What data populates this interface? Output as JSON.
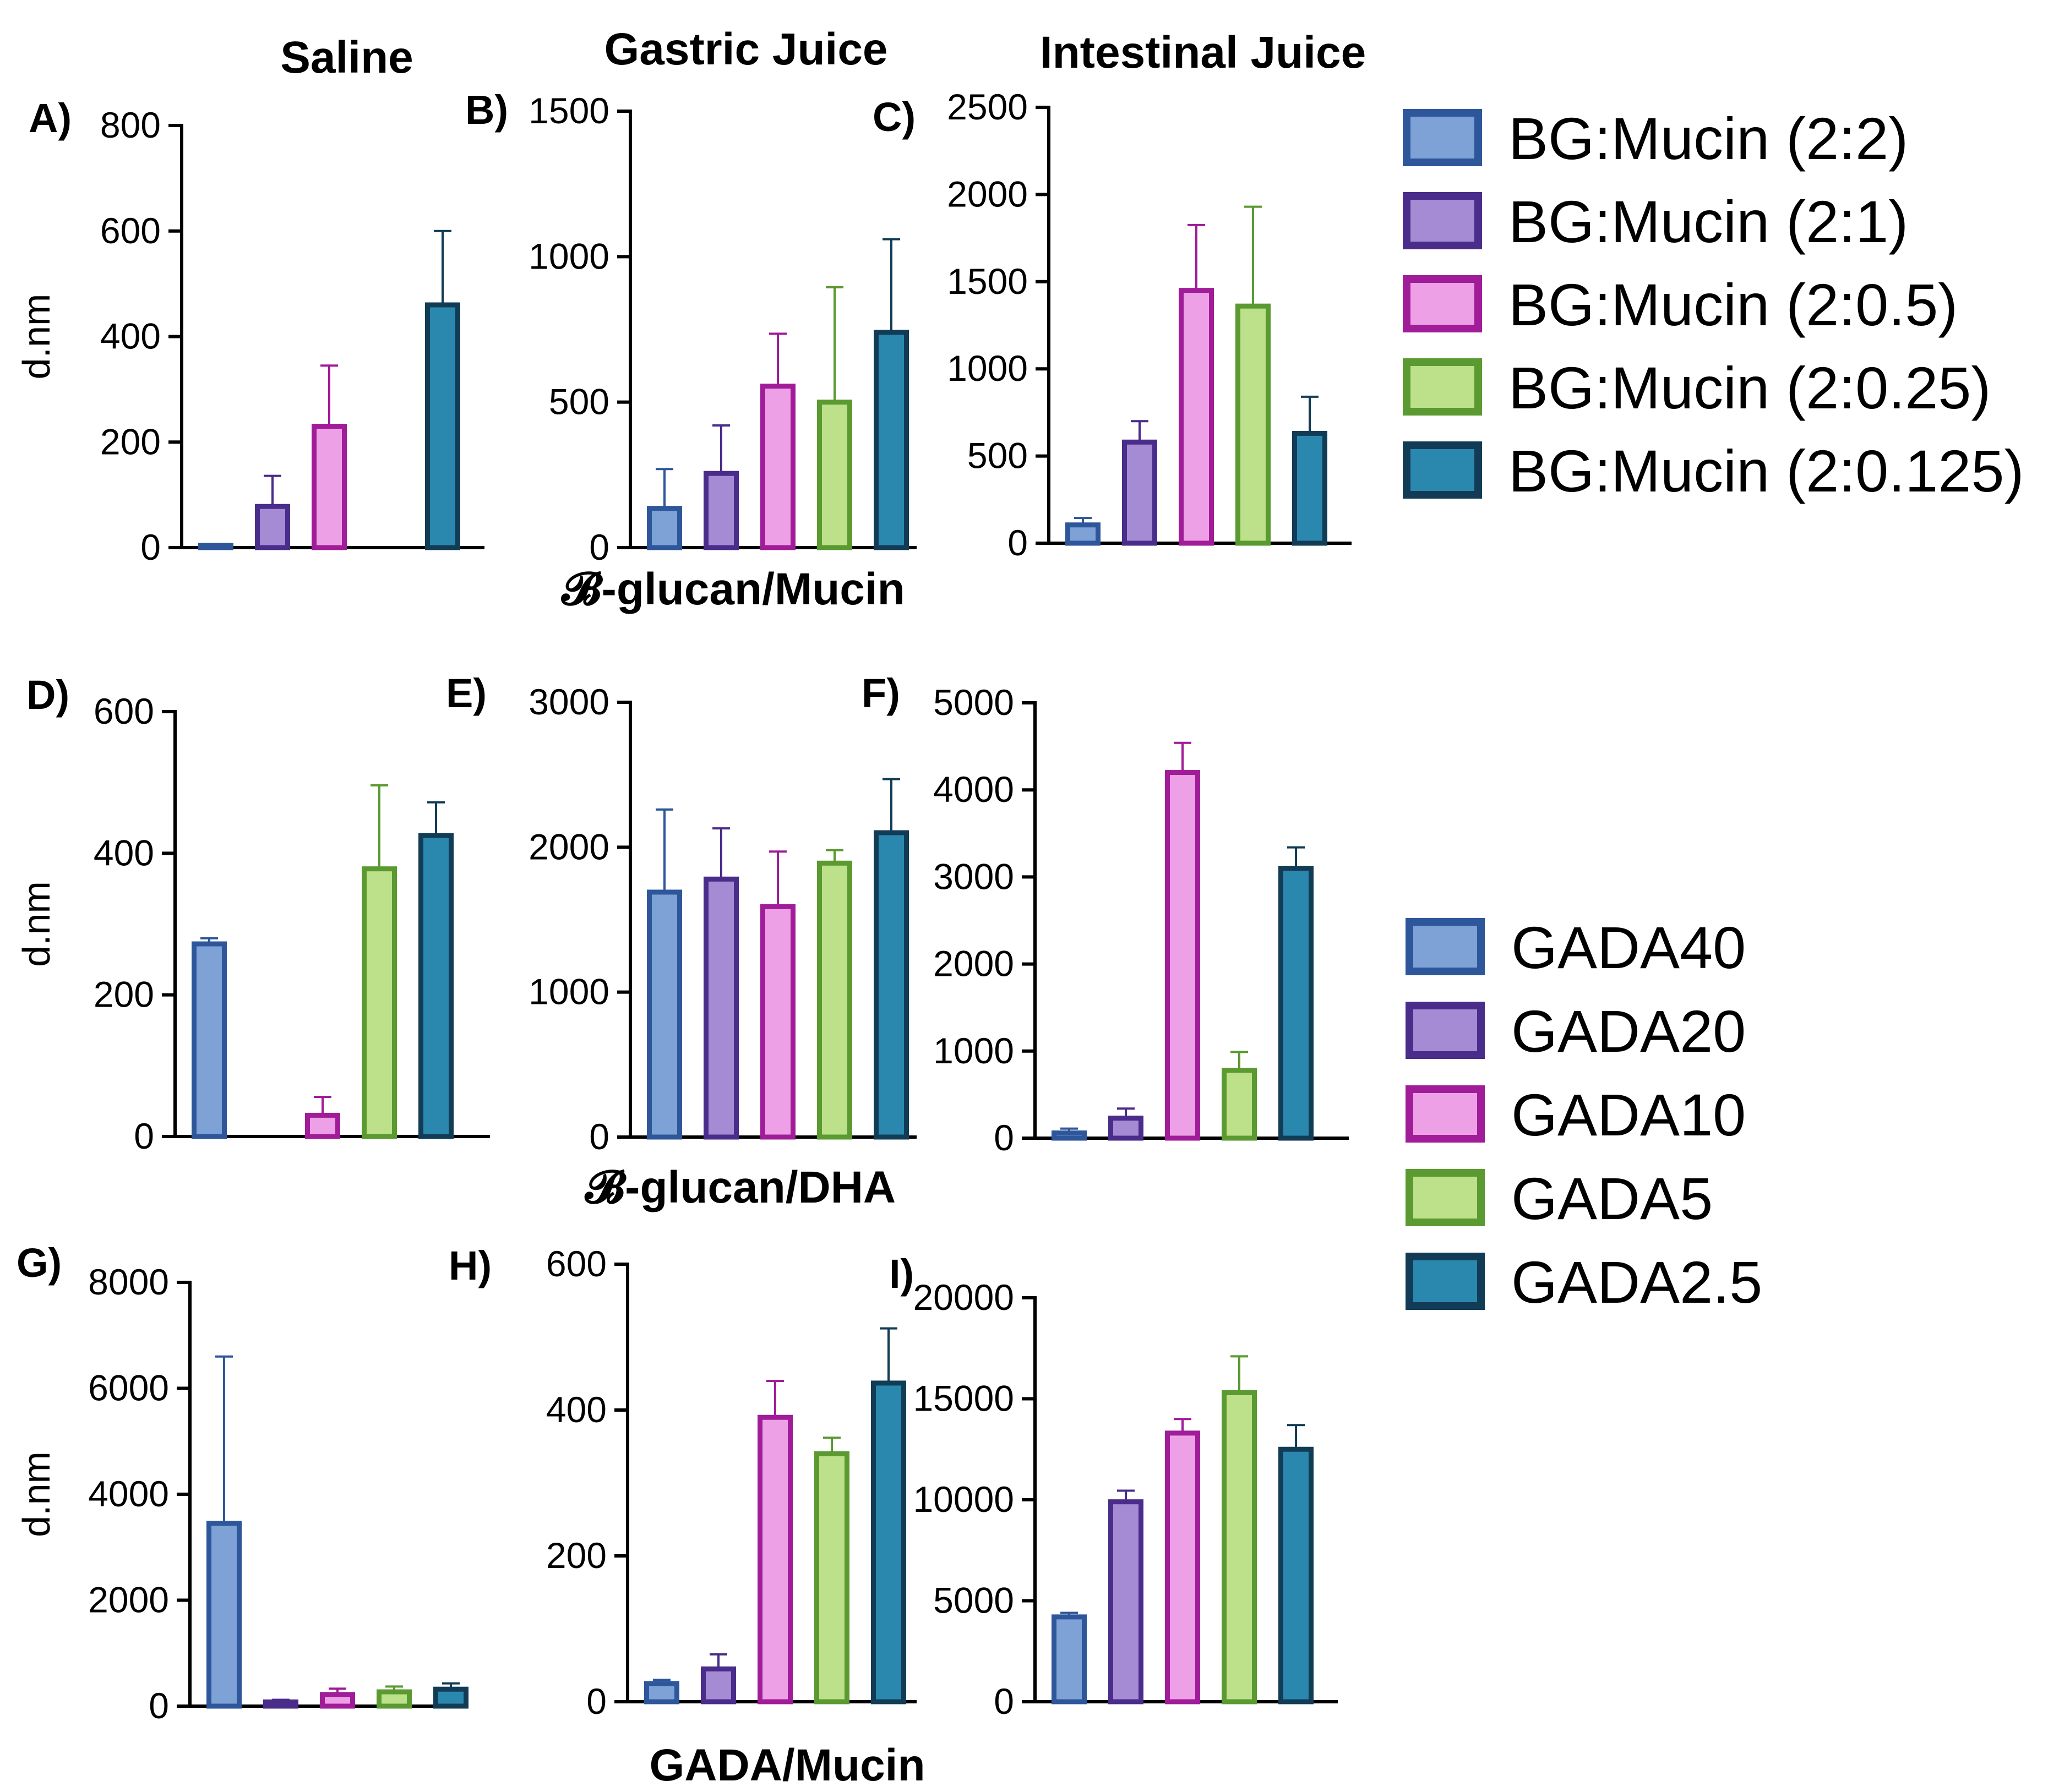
{
  "column_titles": [
    "Saline",
    "Gastric Juice",
    "Intestinal Juice"
  ],
  "row_xlabels": [
    "𝓑-glucan/Mucin",
    "𝓑-glucan/DHA",
    "GADA/Mucin"
  ],
  "ylabel": "d.nm",
  "legends": [
    {
      "entries": [
        {
          "label": "BG:Mucin (2:2)",
          "fill": "#7ea2d6",
          "stroke": "#2e569a"
        },
        {
          "label": "BG:Mucin (2:1)",
          "fill": "#a48bd4",
          "stroke": "#4a2c8a"
        },
        {
          "label": "BG:Mucin (2:0.5)",
          "fill": "#eea0e6",
          "stroke": "#a01c98"
        },
        {
          "label": "BG:Mucin (2:0.25)",
          "fill": "#bde08a",
          "stroke": "#5a9a30"
        },
        {
          "label": "BG:Mucin (2:0.125)",
          "fill": "#2a88ae",
          "stroke": "#123c56"
        }
      ]
    },
    {
      "entries": [
        {
          "label": "GADA40",
          "fill": "#7ea2d6",
          "stroke": "#2e569a"
        },
        {
          "label": "GADA20",
          "fill": "#a48bd4",
          "stroke": "#4a2c8a"
        },
        {
          "label": "GADA10",
          "fill": "#eea0e6",
          "stroke": "#a01c98"
        },
        {
          "label": "GADA5",
          "fill": "#bde08a",
          "stroke": "#5a9a30"
        },
        {
          "label": "GADA2.5",
          "fill": "#2a88ae",
          "stroke": "#123c56"
        }
      ]
    }
  ],
  "chart_data": [
    {
      "id": "A",
      "panel_label": "A)",
      "type": "bar",
      "row": 0,
      "col": 0,
      "categories": [
        "BG:Mucin (2:2)",
        "BG:Mucin (2:1)",
        "BG:Mucin (2:0.5)",
        "BG:Mucin (2:0.25)",
        "BG:Mucin (2:0.125)"
      ],
      "values": [
        2,
        78,
        230,
        0,
        460
      ],
      "errors": [
        0,
        58,
        115,
        0,
        140
      ],
      "ylim": [
        0,
        800
      ],
      "yticks": [
        0,
        200,
        400,
        600,
        800
      ],
      "ylabel": "d.nm"
    },
    {
      "id": "B",
      "panel_label": "B)",
      "type": "bar",
      "row": 0,
      "col": 1,
      "categories": [
        "BG:Mucin (2:2)",
        "BG:Mucin (2:1)",
        "BG:Mucin (2:0.5)",
        "BG:Mucin (2:0.25)",
        "BG:Mucin (2:0.125)"
      ],
      "values": [
        135,
        255,
        555,
        500,
        740
      ],
      "errors": [
        135,
        165,
        180,
        395,
        320
      ],
      "ylim": [
        0,
        1500
      ],
      "yticks": [
        0,
        500,
        1000,
        1500
      ],
      "ylabel": ""
    },
    {
      "id": "C",
      "panel_label": "C)",
      "type": "bar",
      "row": 0,
      "col": 2,
      "categories": [
        "BG:Mucin (2:2)",
        "BG:Mucin (2:1)",
        "BG:Mucin (2:0.5)",
        "BG:Mucin (2:0.25)",
        "BG:Mucin (2:0.125)"
      ],
      "values": [
        105,
        580,
        1450,
        1360,
        630
      ],
      "errors": [
        40,
        120,
        375,
        570,
        210
      ],
      "ylim": [
        0,
        2500
      ],
      "yticks": [
        0,
        500,
        1000,
        1500,
        2000,
        2500
      ],
      "ylabel": ""
    },
    {
      "id": "D",
      "panel_label": "D)",
      "type": "bar",
      "row": 1,
      "col": 0,
      "categories": [
        "GADA40",
        "GADA20",
        "GADA10",
        "GADA5",
        "GADA2.5"
      ],
      "values": [
        272,
        0,
        30,
        378,
        425
      ],
      "errors": [
        8,
        0,
        26,
        118,
        47
      ],
      "ylim": [
        0,
        600
      ],
      "yticks": [
        0,
        200,
        400,
        600
      ],
      "ylabel": "d.nm"
    },
    {
      "id": "E",
      "panel_label": "E)",
      "type": "bar",
      "row": 1,
      "col": 1,
      "categories": [
        "GADA40",
        "GADA20",
        "GADA10",
        "GADA5",
        "GADA2.5"
      ],
      "values": [
        1690,
        1780,
        1590,
        1890,
        2100
      ],
      "errors": [
        570,
        350,
        380,
        90,
        370
      ],
      "ylim": [
        0,
        3000
      ],
      "yticks": [
        0,
        1000,
        2000,
        3000
      ],
      "ylabel": ""
    },
    {
      "id": "F",
      "panel_label": "F)",
      "type": "bar",
      "row": 1,
      "col": 2,
      "categories": [
        "GADA40",
        "GADA20",
        "GADA10",
        "GADA5",
        "GADA2.5"
      ],
      "values": [
        60,
        230,
        4200,
        780,
        3100
      ],
      "errors": [
        50,
        110,
        340,
        210,
        240
      ],
      "ylim": [
        0,
        5000
      ],
      "yticks": [
        0,
        1000,
        2000,
        3000,
        4000,
        5000
      ],
      "ylabel": ""
    },
    {
      "id": "G",
      "panel_label": "G)",
      "type": "bar",
      "row": 2,
      "col": 0,
      "categories": [
        "GADA40",
        "GADA20",
        "GADA10",
        "GADA5",
        "GADA2.5"
      ],
      "values": [
        3450,
        80,
        220,
        270,
        320
      ],
      "errors": [
        3150,
        40,
        110,
        100,
        110
      ],
      "ylim": [
        0,
        8000
      ],
      "yticks": [
        0,
        2000,
        4000,
        6000,
        8000
      ],
      "ylabel": "d.nm"
    },
    {
      "id": "H",
      "panel_label": "H)",
      "type": "bar",
      "row": 2,
      "col": 1,
      "categories": [
        "GADA40",
        "GADA20",
        "GADA10",
        "GADA5",
        "GADA2.5"
      ],
      "values": [
        25,
        45,
        390,
        340,
        437
      ],
      "errors": [
        5,
        20,
        50,
        22,
        75
      ],
      "ylim": [
        0,
        600
      ],
      "yticks": [
        0,
        200,
        400,
        600
      ],
      "ylabel": ""
    },
    {
      "id": "I",
      "panel_label": "I)",
      "type": "bar",
      "row": 2,
      "col": 2,
      "categories": [
        "GADA40",
        "GADA20",
        "GADA10",
        "GADA5",
        "GADA2.5"
      ],
      "values": [
        4200,
        9900,
        13300,
        15300,
        12500
      ],
      "errors": [
        200,
        550,
        700,
        1800,
        1200
      ],
      "ylim": [
        0,
        20000
      ],
      "yticks": [
        0,
        5000,
        10000,
        15000,
        20000
      ],
      "ylabel": ""
    }
  ]
}
